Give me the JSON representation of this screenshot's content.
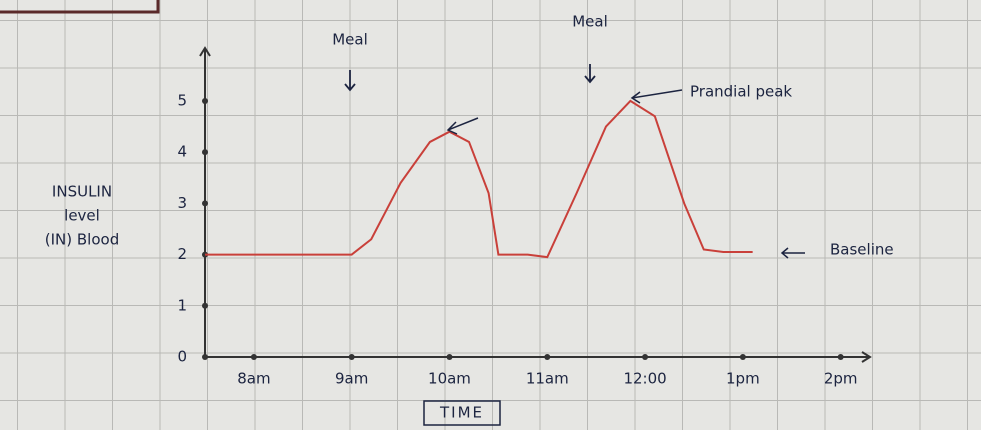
{
  "chart_data": {
    "type": "line",
    "x": [
      7.5,
      8,
      8.5,
      9,
      9.2,
      9.5,
      9.8,
      10,
      10.2,
      10.4,
      10.5,
      10.8,
      11,
      11.3,
      11.6,
      11.85,
      12.1,
      12.4,
      12.6,
      12.8,
      13.1
    ],
    "values": [
      2,
      2,
      2,
      2,
      2.3,
      3.4,
      4.2,
      4.4,
      4.2,
      3.2,
      2.0,
      2.0,
      1.95,
      3.2,
      4.5,
      5,
      4.7,
      3,
      2.1,
      2.05,
      2.05
    ],
    "color": "#c9403a",
    "xlim": [
      7.5,
      14.3
    ],
    "xticks": [
      {
        "value": 8,
        "label": "8am"
      },
      {
        "value": 9,
        "label": "9am"
      },
      {
        "value": 10,
        "label": "10am"
      },
      {
        "value": 11,
        "label": "11am"
      },
      {
        "value": 12,
        "label": "12:00"
      },
      {
        "value": 13,
        "label": "1pm"
      },
      {
        "value": 14,
        "label": "2pm"
      }
    ],
    "ylim": [
      0,
      5.8
    ],
    "yticks": [
      0,
      1,
      2,
      3,
      4,
      5
    ],
    "xlabel": "TIME",
    "ylabel": [
      "INSULIN",
      "level",
      "(IN) Blood"
    ],
    "annotations": [
      "Meal",
      "Meal",
      "Prandial peak",
      "Baseline"
    ]
  }
}
